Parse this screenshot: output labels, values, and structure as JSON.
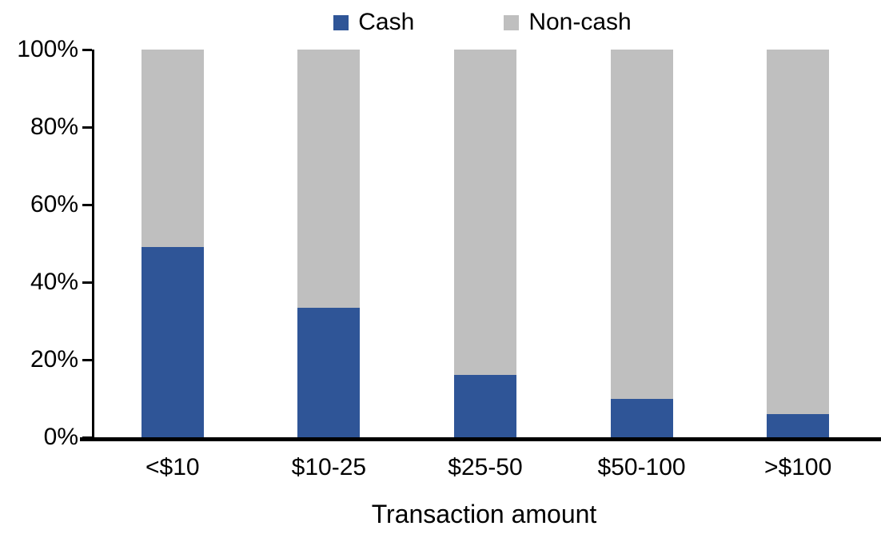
{
  "chart_data": {
    "type": "bar",
    "stacked": true,
    "stacked_total": 100,
    "xlabel": "Transaction amount",
    "categories": [
      "<$10",
      "$10-25",
      "$25-50",
      "$50-100",
      ">$100"
    ],
    "series": [
      {
        "name": "Cash",
        "color": "#2F5597",
        "values": [
          49,
          33.5,
          16,
          10,
          6
        ]
      },
      {
        "name": "Non-cash",
        "color": "#BFBFBF",
        "values": [
          51,
          66.5,
          84,
          90,
          94
        ]
      }
    ],
    "y_axis": {
      "min": 0,
      "max": 100,
      "tick_step": 20,
      "tick_labels": [
        "0%",
        "20%",
        "40%",
        "60%",
        "80%",
        "100%"
      ],
      "unit": "%"
    },
    "legend_position": "top-center",
    "grid": false,
    "axis_color": "#000000",
    "text_color": "#000000",
    "background_color": "#FFFFFF"
  }
}
